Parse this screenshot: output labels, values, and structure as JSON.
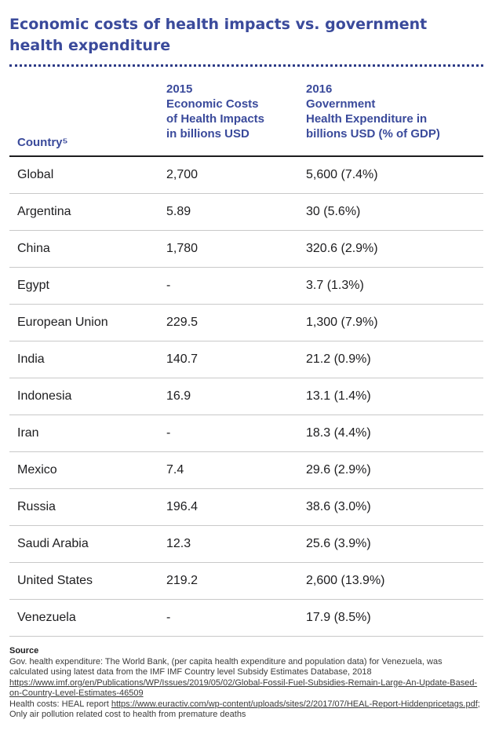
{
  "title": "Economic costs of health impacts vs. government health expenditure",
  "table": {
    "headers": {
      "country": "Country⁵",
      "costs_line1": "2015",
      "costs_line2": "Economic Costs",
      "costs_line3": "of Health Impacts",
      "costs_line4": "in billions USD",
      "exp_line1": "2016",
      "exp_line2": "Government",
      "exp_line3": "Health Expenditure in",
      "exp_line4": "billions USD (% of GDP)"
    },
    "rows": [
      {
        "country": "Global",
        "costs": "2,700",
        "expenditure": "5,600 (7.4%)"
      },
      {
        "country": "Argentina",
        "costs": "5.89",
        "expenditure": "30 (5.6%)"
      },
      {
        "country": "China",
        "costs": "1,780",
        "expenditure": "320.6 (2.9%)"
      },
      {
        "country": "Egypt",
        "costs": "-",
        "expenditure": "3.7 (1.3%)"
      },
      {
        "country": "European Union",
        "costs": "229.5",
        "expenditure": "1,300 (7.9%)"
      },
      {
        "country": "India",
        "costs": "140.7",
        "expenditure": "21.2 (0.9%)"
      },
      {
        "country": "Indonesia",
        "costs": "16.9",
        "expenditure": "13.1 (1.4%)"
      },
      {
        "country": "Iran",
        "costs": "-",
        "expenditure": "18.3 (4.4%)"
      },
      {
        "country": "Mexico",
        "costs": "7.4",
        "expenditure": "29.6 (2.9%)"
      },
      {
        "country": "Russia",
        "costs": "196.4",
        "expenditure": "38.6 (3.0%)"
      },
      {
        "country": "Saudi Arabia",
        "costs": "12.3",
        "expenditure": "25.6 (3.9%)"
      },
      {
        "country": "United States",
        "costs": "219.2",
        "expenditure": "2,600 (13.9%)"
      },
      {
        "country": "Venezuela",
        "costs": "-",
        "expenditure": "17.9 (8.5%)"
      }
    ]
  },
  "source": {
    "label": "Source",
    "text1": "Gov. health expenditure: The World Bank, (per capita health expenditure and population data) for Venezuela, was calculated using latest data from the IMF IMF Country level Subsidy Estimates Database, 2018 ",
    "link1": "https://www.imf.org/en/Publications/WP/Issues/2019/05/02/Global-Fossil-Fuel-Subsidies-Remain-Large-An-Update-Based-on-Country-Level-Estimates-46509",
    "text2": "Health costs: HEAL report ",
    "link2": "https://www.euractiv.com/wp-content/uploads/sites/2/2017/07/HEAL-Report-Hiddenpricetags.pdf",
    "text3": "; Only air pollution related cost to health from premature deaths"
  }
}
